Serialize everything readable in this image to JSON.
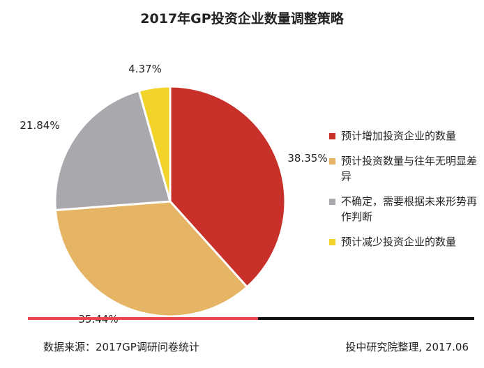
{
  "chart_data": {
    "type": "pie",
    "title": "2017年GP投资企业数量调整策略",
    "slices": [
      {
        "label": "预计增加投资企业的数量",
        "value": 38.35,
        "value_label": "38.35%",
        "color": "#c8312a"
      },
      {
        "label": "预计投资数量与往年无明显差异",
        "value": 35.44,
        "value_label": "35.44%",
        "color": "#e5b464"
      },
      {
        "label": "不确定，需要根据未来形势再作判断",
        "value": 21.84,
        "value_label": "21.84%",
        "color": "#a9a8ad"
      },
      {
        "label": "预计减少投资企业的数量",
        "value": 4.37,
        "value_label": "4.37%",
        "color": "#f2d32a"
      }
    ],
    "start_angle": "12 o'clock",
    "direction": "clockwise",
    "legend_position": "right"
  },
  "footer": {
    "source": "数据来源：2017GP调研问卷统计",
    "credit": "投中研究院整理, 2017.06",
    "bar_colors": [
      "#e8484a",
      "#111111"
    ]
  }
}
